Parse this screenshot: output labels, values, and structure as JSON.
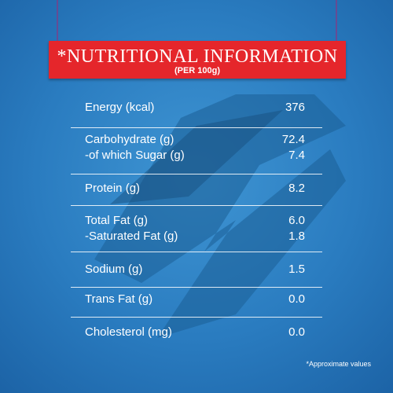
{
  "header": {
    "title": "*NUTRITIONAL INFORMATION",
    "subtitle": "(PER 100g)"
  },
  "table": {
    "groups": [
      [
        {
          "label": "Energy (kcal)",
          "value": "376"
        }
      ],
      [
        {
          "label": "Carbohydrate (g)",
          "value": "72.4"
        },
        {
          "label": "-of which Sugar (g)",
          "value": "7.4"
        }
      ],
      [
        {
          "label": "Protein (g)",
          "value": "8.2"
        }
      ],
      [
        {
          "label": "Total Fat (g)",
          "value": "6.0"
        },
        {
          "label": "-Saturated Fat (g)",
          "value": "1.8"
        }
      ],
      [
        {
          "label": "Sodium (g)",
          "value": "1.5"
        }
      ],
      [
        {
          "label": "Trans Fat (g)",
          "value": "0.0"
        }
      ],
      [
        {
          "label": "Cholesterol (mg)",
          "value": "0.0"
        }
      ]
    ]
  },
  "footnote": "*Approximate values"
}
